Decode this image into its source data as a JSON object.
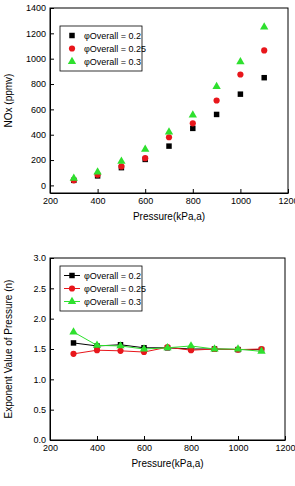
{
  "chart_data": [
    {
      "type": "scatter",
      "x_label": "Pressure(kPa,a)",
      "y_label": "NOx (ppmv)",
      "x": [
        300,
        400,
        500,
        600,
        700,
        800,
        900,
        1000,
        1100
      ],
      "series": [
        {
          "name": "φOverall = 0.2",
          "color": "#000000",
          "marker": "square",
          "values": [
            40,
            75,
            140,
            205,
            310,
            450,
            560,
            720,
            850
          ]
        },
        {
          "name": "φOverall = 0.25",
          "color": "#e8161b",
          "marker": "circle",
          "values": [
            40,
            85,
            150,
            215,
            380,
            490,
            670,
            875,
            1065
          ]
        },
        {
          "name": "φOverall = 0.3",
          "color": "#2ee02e",
          "marker": "triangle",
          "values": [
            55,
            105,
            190,
            285,
            420,
            555,
            780,
            975,
            1250
          ]
        }
      ],
      "xlim": [
        200,
        1200
      ],
      "xticks": [
        200,
        400,
        600,
        800,
        1000,
        1200
      ],
      "ylim": [
        -60,
        1400
      ],
      "yticks": [
        0,
        200,
        400,
        600,
        800,
        1000,
        1200,
        1400
      ],
      "grid": false,
      "legend": "upper left"
    },
    {
      "type": "line",
      "x_label": "Pressure(kPa,a)",
      "y_label": "Exponent Value of Pressure (n)",
      "x": [
        300,
        400,
        500,
        600,
        700,
        800,
        900,
        1000,
        1100
      ],
      "series": [
        {
          "name": "φOverall = 0.2",
          "color": "#000000",
          "marker": "square",
          "line_style": "solid",
          "values": [
            1.6,
            1.55,
            1.57,
            1.52,
            1.52,
            1.5,
            1.5,
            1.49,
            1.49
          ]
        },
        {
          "name": "φOverall = 0.25",
          "color": "#e8161b",
          "marker": "circle",
          "line_style": "solid",
          "values": [
            1.42,
            1.48,
            1.47,
            1.45,
            1.53,
            1.48,
            1.5,
            1.49,
            1.5
          ]
        },
        {
          "name": "φOverall = 0.3",
          "color": "#2ee02e",
          "marker": "triangle",
          "line_style": "solid",
          "values": [
            1.78,
            1.56,
            1.55,
            1.5,
            1.52,
            1.55,
            1.5,
            1.5,
            1.46
          ]
        }
      ],
      "xlim": [
        200,
        1200
      ],
      "xticks": [
        200,
        400,
        600,
        800,
        1000,
        1200
      ],
      "ylim": [
        0,
        3.0
      ],
      "yticks": [
        {
          "value": 0,
          "label": "0.0"
        },
        0.5,
        {
          "value": 1,
          "label": "1.0"
        },
        1.5,
        {
          "value": 2,
          "label": "2.0"
        },
        2.5,
        {
          "value": 3,
          "label": "3.0"
        }
      ],
      "grid": false,
      "legend": "upper left"
    }
  ]
}
